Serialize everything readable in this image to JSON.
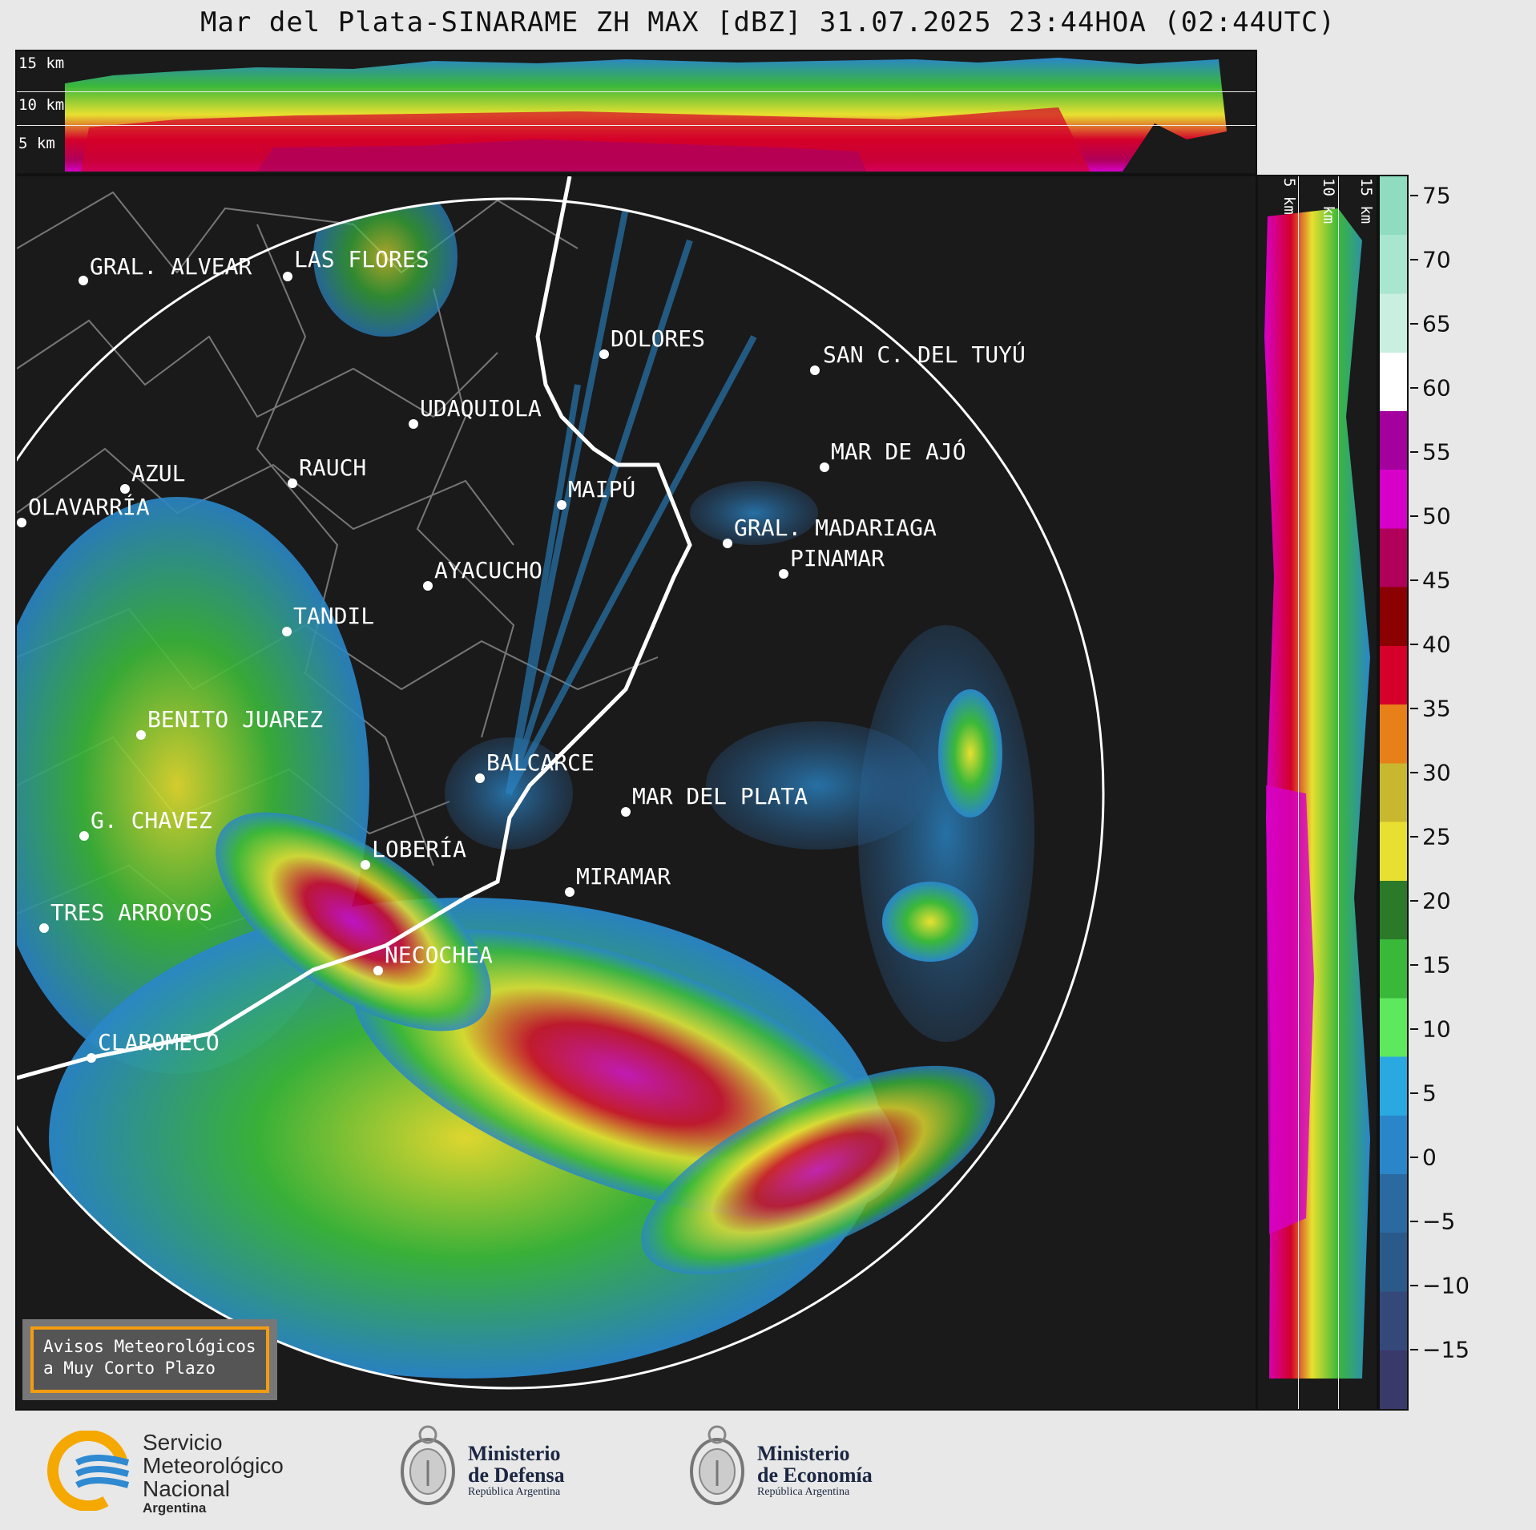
{
  "title": "Mar del Plata-SINARAME ZH MAX [dBZ] 31.07.2025 23:44HOA (02:44UTC)",
  "top_profile": {
    "km_labels": [
      "15 km",
      "10 km",
      "5 km"
    ]
  },
  "side_profile": {
    "km_labels": [
      "5 km",
      "10 km",
      "15 km"
    ]
  },
  "cities": [
    {
      "name": "GRAL. ALVEAR"
    },
    {
      "name": "LAS FLORES"
    },
    {
      "name": "DOLORES"
    },
    {
      "name": "SAN C. DEL TUYÚ"
    },
    {
      "name": "UDAQUIOLA"
    },
    {
      "name": "MAR DE AJÓ"
    },
    {
      "name": "AZUL"
    },
    {
      "name": "RAUCH"
    },
    {
      "name": "MAIPÚ"
    },
    {
      "name": "OLAVARRÍA"
    },
    {
      "name": "GRAL. MADARIAGA"
    },
    {
      "name": "PINAMAR"
    },
    {
      "name": "AYACUCHO"
    },
    {
      "name": "TANDIL"
    },
    {
      "name": "BENITO JUAREZ"
    },
    {
      "name": "BALCARCE"
    },
    {
      "name": "MAR DEL PLATA"
    },
    {
      "name": "G. CHAVEZ"
    },
    {
      "name": "LOBERÍA"
    },
    {
      "name": "MIRAMAR"
    },
    {
      "name": "TRES ARROYOS"
    },
    {
      "name": "NECOCHEA"
    },
    {
      "name": "CLAROMECO"
    }
  ],
  "colorbar": {
    "ticks": [
      "75",
      "70",
      "65",
      "60",
      "55",
      "50",
      "45",
      "40",
      "35",
      "30",
      "25",
      "20",
      "15",
      "10",
      "5",
      "0",
      "−5",
      "−10",
      "−15"
    ],
    "colors": [
      "#8fdcc0",
      "#a8e6cf",
      "#c8efdf",
      "#ffffff",
      "#a3009e",
      "#d600c8",
      "#b0005a",
      "#8b0000",
      "#d4002a",
      "#e8801a",
      "#c8b830",
      "#e8e030",
      "#2a7a2a",
      "#3ab83a",
      "#5ee85e",
      "#2aa8e0",
      "#2a86c8",
      "#2a6aa0",
      "#2a5a8a",
      "#34497a",
      "#3a3a6a"
    ]
  },
  "aviso": {
    "line1": "Avisos Meteorológicos",
    "line2": "a Muy Corto Plazo"
  },
  "footer": {
    "smn": {
      "line1": "Servicio",
      "line2": "Meteorológico",
      "line3": "Nacional",
      "line4": "Argentina"
    },
    "defensa": {
      "line1": "Ministerio",
      "line2": "de Defensa",
      "sub": "República Argentina"
    },
    "economia": {
      "line1": "Ministerio",
      "line2": "de Economía",
      "sub": "República Argentina"
    }
  }
}
